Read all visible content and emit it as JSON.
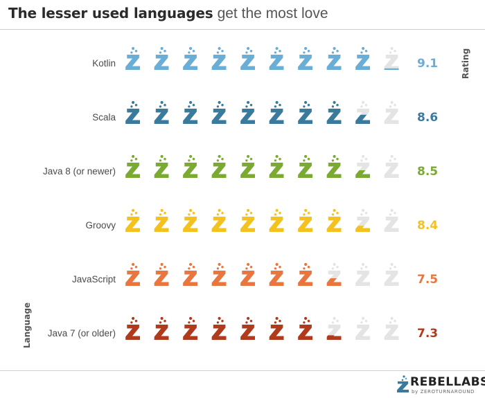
{
  "title": {
    "bold": "The lesser used languages",
    "light": "get the most love"
  },
  "chart_data": {
    "type": "bar",
    "title": "The lesser used languages get the most love",
    "xlabel": "Rating",
    "ylabel": "Language",
    "xlim": [
      0,
      10
    ],
    "categories": [
      "Kotlin",
      "Scala",
      "Java 8 (or newer)",
      "Groovy",
      "JavaScript",
      "Java 7 (or older)"
    ],
    "values": [
      9.1,
      8.6,
      8.5,
      8.4,
      7.5,
      7.3
    ],
    "value_labels": [
      "9.1",
      "8.6",
      "8.5",
      "8.4",
      "7.5",
      "7.3"
    ],
    "colors": [
      "#6aaed6",
      "#3a7a9c",
      "#7aaa32",
      "#f4c21f",
      "#e8763e",
      "#b03a1c"
    ],
    "empty_color": "#e4e4e4",
    "icons_per_row": 10,
    "icon": "flask-icon",
    "grid": false,
    "legend": "none"
  },
  "logo": {
    "word": "REBELLABS",
    "sub": "by ZEROTURNAROUND",
    "icon": "flask-logo-icon"
  }
}
